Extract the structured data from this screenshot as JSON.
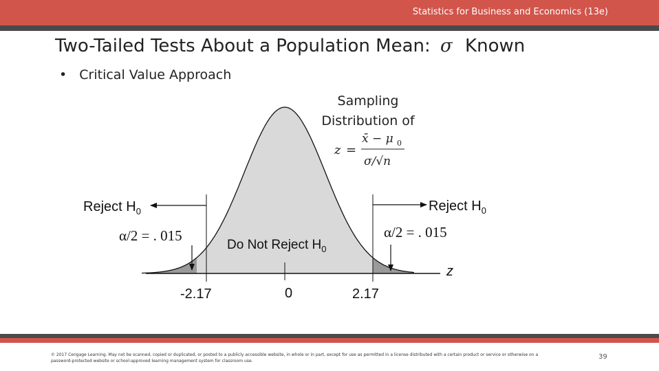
{
  "header": {
    "book_title": "Statistics for Business and Economics (13e)",
    "slide_title_prefix": "Two-Tailed Tests About a Population Mean:",
    "sigma_symbol": "σ",
    "slide_title_suffix": "Known",
    "bar_color": "#d1554b",
    "strip_color": "#4a4a4a"
  },
  "bullet": {
    "symbol": "•",
    "text": "Critical Value Approach"
  },
  "figure": {
    "distribution_label_line1": "Sampling",
    "distribution_label_line2": "Distribution of",
    "formula": {
      "z": "z",
      "equals": "=",
      "numerator": "x̄ − μ",
      "numerator_sub": "0",
      "denominator": "σ/√n"
    },
    "reject_left": {
      "text": "Reject H",
      "sub": "0"
    },
    "reject_right": {
      "text": "Reject H",
      "sub": "0"
    },
    "alpha_left": "α/2 = . 015",
    "alpha_right": "α/2 = . 015",
    "do_not_reject": {
      "text": "Do Not Reject H",
      "sub": "0"
    },
    "axis_variable": "z",
    "ticks": {
      "left": "-2.17",
      "center": "0",
      "right": "2.17"
    },
    "critical_value": 2.17,
    "curve_fill_color": "#d9d9d9",
    "tail_fill_color": "#9a9a9a"
  },
  "footer": {
    "copyright": "© 2017 Cengage Learning. May not be scanned, copied or duplicated, or posted to a publicly accessible website, in whole or in part, except for use as permitted in a license distributed with a certain product or service or otherwise on a password-protected website or school-approved learning management system for classroom use.",
    "page_number": "39",
    "dark_color": "#4a4a4a",
    "red_color": "#d1554b"
  }
}
